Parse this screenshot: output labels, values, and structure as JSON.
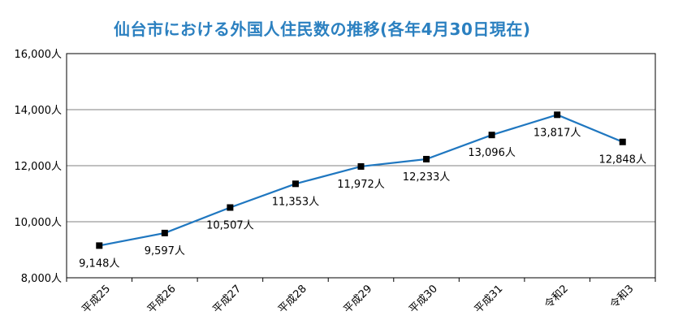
{
  "chart_data": {
    "type": "line",
    "title": "仙台市における外国人住民数の推移(各年4月30日現在)",
    "categories": [
      "平成25",
      "平成26",
      "平成27",
      "平成28",
      "平成29",
      "平成30",
      "平成31",
      "令和2",
      "令和3"
    ],
    "values": [
      9148,
      9597,
      10507,
      11353,
      11972,
      12233,
      13096,
      13817,
      12848
    ],
    "data_labels": [
      "9,148人",
      "9,597人",
      "10,507人",
      "11,353人",
      "11,972人",
      "12,233人",
      "13,096人",
      "13,817人",
      "12,848人"
    ],
    "ylim": [
      8000,
      16000
    ],
    "y_ticks": [
      8000,
      10000,
      12000,
      14000,
      16000
    ],
    "y_tick_labels": [
      "8,000人",
      "10,000人",
      "12,000人",
      "14,000人",
      "16,000人"
    ],
    "grid": true,
    "colors": {
      "line": "#1f77c0",
      "marker": "#000000",
      "title": "#2b80c0",
      "grid": "#808080"
    }
  }
}
